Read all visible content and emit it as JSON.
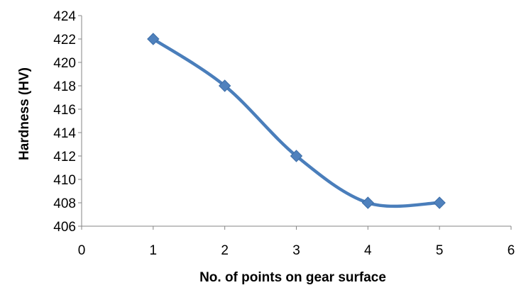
{
  "chart_data": {
    "type": "line",
    "title": "",
    "xlabel": "No. of points on gear surface",
    "ylabel": "Hardness (HV)",
    "xlim": [
      0,
      6
    ],
    "ylim": [
      406,
      424
    ],
    "x_ticks": [
      "0",
      "1",
      "2",
      "3",
      "4",
      "5",
      "6"
    ],
    "y_ticks": [
      "406",
      "408",
      "410",
      "412",
      "414",
      "416",
      "418",
      "420",
      "422",
      "424"
    ],
    "series": [
      {
        "x": [
          1,
          2,
          3,
          4,
          5
        ],
        "values": [
          422,
          418,
          412,
          408,
          408
        ],
        "marker": "diamond",
        "smooth": true,
        "color": "#4a7ebb",
        "marker_color": "#4f81bd"
      }
    ],
    "grid": false,
    "legend": "none"
  }
}
